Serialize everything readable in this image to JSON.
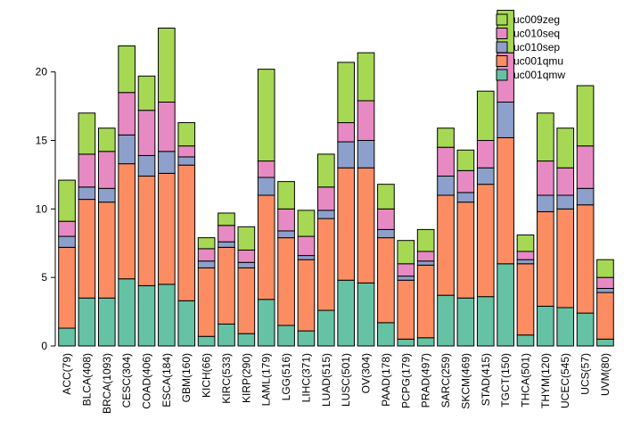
{
  "chart_data": {
    "type": "bar",
    "stacked": true,
    "title": "",
    "xlabel": "",
    "ylabel": "",
    "ylim": [
      0,
      24.6
    ],
    "yticks": [
      0,
      5,
      10,
      15,
      20
    ],
    "grid": false,
    "legend_position": "top-right",
    "legend_order": [
      "uc009zeg",
      "uc010seq",
      "uc010sep",
      "uc001qmu",
      "uc001qmw"
    ],
    "categories": [
      "ACC(79)",
      "BLCA(408)",
      "BRCA(1093)",
      "CESC(304)",
      "COAD(406)",
      "ESCA(184)",
      "GBM(160)",
      "KICH(66)",
      "KIRC(533)",
      "KIRP(290)",
      "LAML(179)",
      "LGG(516)",
      "LIHC(371)",
      "LUAD(515)",
      "LUSC(501)",
      "OV(304)",
      "PAAD(178)",
      "PCPG(179)",
      "PRAD(497)",
      "SARC(259)",
      "SKCM(469)",
      "STAD(415)",
      "TGCT(150)",
      "THCA(501)",
      "THYM(120)",
      "UCEC(545)",
      "UCS(57)",
      "UVM(80)"
    ],
    "series": [
      {
        "name": "uc001qmw",
        "color": "#66C2A5",
        "values": [
          1.3,
          3.5,
          3.5,
          4.9,
          4.4,
          4.5,
          3.3,
          0.7,
          1.6,
          0.9,
          3.4,
          1.5,
          1.1,
          2.6,
          4.8,
          4.6,
          1.7,
          0.5,
          0.6,
          3.7,
          3.5,
          3.6,
          6.0,
          0.8,
          2.9,
          2.8,
          2.4,
          0.5
        ]
      },
      {
        "name": "uc001qmu",
        "color": "#FC8D62",
        "values": [
          5.9,
          7.2,
          7.0,
          8.4,
          8.0,
          8.1,
          9.9,
          5.0,
          5.6,
          4.8,
          7.6,
          6.4,
          5.2,
          6.7,
          8.2,
          8.4,
          6.2,
          4.3,
          5.3,
          7.3,
          7.0,
          8.2,
          9.2,
          5.2,
          6.9,
          7.2,
          7.9,
          3.4
        ]
      },
      {
        "name": "uc010sep",
        "color": "#8DA0CB",
        "values": [
          0.8,
          0.9,
          1.0,
          2.1,
          1.5,
          1.6,
          0.6,
          0.5,
          0.4,
          0.4,
          1.3,
          0.5,
          0.3,
          0.6,
          1.9,
          2.0,
          0.6,
          0.3,
          0.3,
          1.4,
          0.7,
          1.2,
          2.6,
          0.3,
          1.2,
          1.0,
          1.2,
          0.3
        ]
      },
      {
        "name": "uc010seq",
        "color": "#E78AC3",
        "values": [
          1.1,
          2.4,
          2.7,
          3.1,
          3.3,
          3.6,
          0.8,
          0.9,
          1.2,
          0.9,
          1.2,
          1.6,
          1.4,
          1.7,
          1.4,
          2.9,
          1.5,
          0.9,
          0.7,
          2.1,
          1.6,
          2.0,
          3.6,
          0.6,
          2.5,
          2.0,
          3.1,
          0.8
        ]
      },
      {
        "name": "uc009zeg",
        "color": "#A6D854",
        "values": [
          3.0,
          3.0,
          1.7,
          3.4,
          2.5,
          5.4,
          1.7,
          0.8,
          0.9,
          1.7,
          6.7,
          2.0,
          1.9,
          2.4,
          4.4,
          3.5,
          1.8,
          1.7,
          1.6,
          1.4,
          1.5,
          3.6,
          3.1,
          1.2,
          3.5,
          2.9,
          4.4,
          1.3
        ]
      }
    ],
    "colors": {
      "uc009zeg": "#A6D854",
      "uc010seq": "#E78AC3",
      "uc010sep": "#8DA0CB",
      "uc001qmu": "#FC8D62",
      "uc001qmw": "#66C2A5"
    },
    "bar_border_color": "#000000",
    "axis_color": "#000000"
  }
}
